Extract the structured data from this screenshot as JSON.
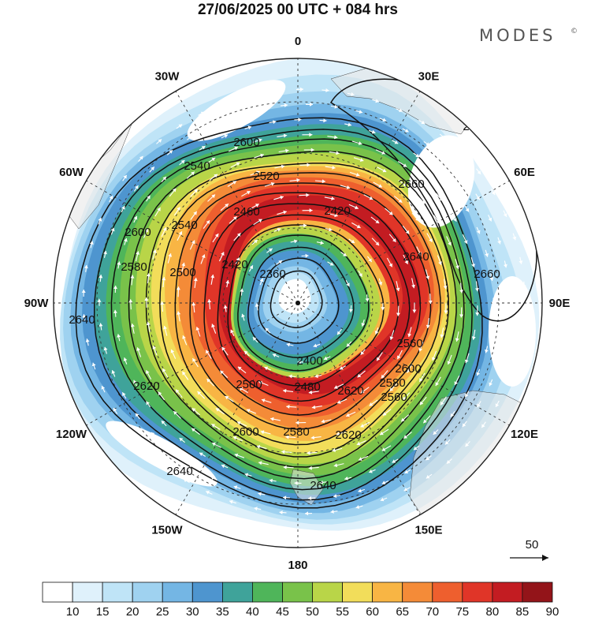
{
  "header": {
    "title": "27/06/2025  00 UTC  + 084 hrs",
    "brand": "MODES",
    "brand_mark": "©"
  },
  "map": {
    "projection": "south-polar-stereographic",
    "meridian_labels": [
      {
        "text": "0",
        "deg": 0
      },
      {
        "text": "30E",
        "deg": 30
      },
      {
        "text": "60E",
        "deg": 60
      },
      {
        "text": "90E",
        "deg": 90
      },
      {
        "text": "120E",
        "deg": 120
      },
      {
        "text": "150E",
        "deg": 150
      },
      {
        "text": "180",
        "deg": 180
      },
      {
        "text": "150W",
        "deg": 210
      },
      {
        "text": "120W",
        "deg": 240
      },
      {
        "text": "90W",
        "deg": 270
      },
      {
        "text": "60W",
        "deg": 300
      },
      {
        "text": "30W",
        "deg": 330
      }
    ],
    "contour_labels": [
      "2360",
      "2420",
      "2460",
      "2520",
      "2580",
      "2620",
      "2640",
      "2660",
      "2600",
      "2540",
      "2500",
      "2480",
      "2400",
      "2560"
    ],
    "wind_reference": {
      "label": "50"
    }
  },
  "colorbar": {
    "colors": [
      "#ffffff",
      "#dff1fb",
      "#bfe4f7",
      "#9fd2f0",
      "#74b6e4",
      "#4e95cf",
      "#3fa39a",
      "#4fb55a",
      "#79c24a",
      "#b9d548",
      "#f2dd5a",
      "#f8b544",
      "#f48b38",
      "#ee5f2e",
      "#e03528",
      "#c31c22",
      "#931419"
    ],
    "labels": [
      "10",
      "15",
      "20",
      "25",
      "30",
      "35",
      "40",
      "45",
      "50",
      "55",
      "60",
      "65",
      "70",
      "75",
      "80",
      "85",
      "90"
    ]
  }
}
